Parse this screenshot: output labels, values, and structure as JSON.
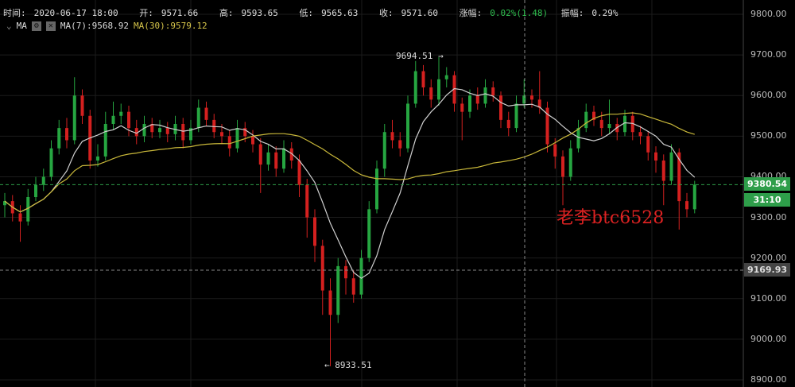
{
  "header": {
    "time_label": "时间:",
    "time": "2020-06-17 18:00",
    "open_label": "开:",
    "open": "9571.66",
    "high_label": "高:",
    "high": "9593.65",
    "low_label": "低:",
    "low": "9565.63",
    "close_label": "收:",
    "close": "9571.60",
    "change_label": "涨幅:",
    "change": "0.02%(1.48)",
    "amplitude_label": "振幅:",
    "amplitude": "0.29%"
  },
  "indicator": {
    "name": "MA",
    "ma7": "MA(7):9568.92",
    "ma30": "MA(30):9579.12",
    "icons": [
      "chevron-down-icon",
      "gear-icon",
      "close-icon"
    ]
  },
  "price_axis": [
    "9800.00",
    "9700.00",
    "9600.00",
    "9500.00",
    "9400.00",
    "9300.00",
    "9200.00",
    "9100.00",
    "9000.00",
    "8900.00"
  ],
  "current_price": "9380.54",
  "countdown": "31:10",
  "crosshair_price": "9169.93",
  "max_annotation": "9694.51 →",
  "min_annotation": "← 8933.51",
  "watermark": "老李btc6528",
  "colors": {
    "up": "#26a641",
    "down": "#d4201f",
    "ma7": "#d0d0d0",
    "ma30": "#c9b83a",
    "current": "#2e9e4a"
  },
  "chart_data": {
    "type": "candlestick",
    "ylim": [
      8900,
      9800
    ],
    "ma_periods": [
      7,
      30
    ],
    "candles": [
      [
        9330,
        9360,
        9300,
        9340
      ],
      [
        9340,
        9355,
        9290,
        9310
      ],
      [
        9310,
        9330,
        9240,
        9290
      ],
      [
        9290,
        9370,
        9280,
        9350
      ],
      [
        9350,
        9400,
        9340,
        9380
      ],
      [
        9380,
        9420,
        9365,
        9400
      ],
      [
        9400,
        9490,
        9390,
        9470
      ],
      [
        9470,
        9540,
        9455,
        9520
      ],
      [
        9520,
        9545,
        9470,
        9490
      ],
      [
        9490,
        9645,
        9480,
        9600
      ],
      [
        9600,
        9615,
        9530,
        9550
      ],
      [
        9550,
        9565,
        9420,
        9440
      ],
      [
        9440,
        9480,
        9425,
        9450
      ],
      [
        9450,
        9560,
        9440,
        9530
      ],
      [
        9530,
        9585,
        9515,
        9550
      ],
      [
        9550,
        9580,
        9530,
        9560
      ],
      [
        9560,
        9575,
        9500,
        9520
      ],
      [
        9520,
        9540,
        9480,
        9500
      ],
      [
        9500,
        9550,
        9485,
        9530
      ],
      [
        9530,
        9545,
        9495,
        9510
      ],
      [
        9510,
        9540,
        9495,
        9520
      ],
      [
        9520,
        9535,
        9485,
        9505
      ],
      [
        9505,
        9550,
        9490,
        9530
      ],
      [
        9530,
        9545,
        9470,
        9490
      ],
      [
        9490,
        9540,
        9480,
        9520
      ],
      [
        9520,
        9590,
        9510,
        9570
      ],
      [
        9570,
        9585,
        9525,
        9540
      ],
      [
        9540,
        9555,
        9495,
        9510
      ],
      [
        9510,
        9530,
        9480,
        9500
      ],
      [
        9500,
        9515,
        9450,
        9470
      ],
      [
        9470,
        9540,
        9460,
        9520
      ],
      [
        9520,
        9535,
        9485,
        9500
      ],
      [
        9500,
        9515,
        9460,
        9480
      ],
      [
        9480,
        9495,
        9360,
        9430
      ],
      [
        9430,
        9480,
        9415,
        9460
      ],
      [
        9460,
        9475,
        9400,
        9420
      ],
      [
        9420,
        9490,
        9410,
        9470
      ],
      [
        9470,
        9485,
        9420,
        9440
      ],
      [
        9440,
        9455,
        9350,
        9380
      ],
      [
        9380,
        9395,
        9250,
        9300
      ],
      [
        9300,
        9320,
        9190,
        9230
      ],
      [
        9230,
        9245,
        9060,
        9120
      ],
      [
        9120,
        9150,
        8933.51,
        9060
      ],
      [
        9060,
        9200,
        9040,
        9180
      ],
      [
        9180,
        9195,
        9110,
        9150
      ],
      [
        9150,
        9170,
        9090,
        9110
      ],
      [
        9110,
        9220,
        9100,
        9200
      ],
      [
        9200,
        9340,
        9190,
        9320
      ],
      [
        9320,
        9440,
        9310,
        9420
      ],
      [
        9420,
        9530,
        9400,
        9510
      ],
      [
        9510,
        9540,
        9470,
        9490
      ],
      [
        9490,
        9510,
        9450,
        9470
      ],
      [
        9470,
        9600,
        9460,
        9580
      ],
      [
        9580,
        9685,
        9570,
        9660
      ],
      [
        9660,
        9675,
        9600,
        9620
      ],
      [
        9620,
        9640,
        9570,
        9590
      ],
      [
        9590,
        9694.51,
        9575,
        9640
      ],
      [
        9640,
        9670,
        9620,
        9650
      ],
      [
        9650,
        9660,
        9560,
        9580
      ],
      [
        9580,
        9595,
        9490,
        9560
      ],
      [
        9560,
        9615,
        9545,
        9600
      ],
      [
        9600,
        9620,
        9565,
        9580
      ],
      [
        9580,
        9640,
        9570,
        9620
      ],
      [
        9620,
        9635,
        9585,
        9600
      ],
      [
        9600,
        9610,
        9520,
        9540
      ],
      [
        9540,
        9560,
        9500,
        9520
      ],
      [
        9520,
        9600,
        9510,
        9580
      ],
      [
        9580,
        9640,
        9570,
        9600
      ],
      [
        9600,
        9615,
        9570,
        9590
      ],
      [
        9590,
        9660,
        9555,
        9570
      ],
      [
        9570,
        9585,
        9460,
        9480
      ],
      [
        9480,
        9495,
        9420,
        9450
      ],
      [
        9450,
        9465,
        9330,
        9400
      ],
      [
        9400,
        9490,
        9390,
        9470
      ],
      [
        9470,
        9540,
        9460,
        9520
      ],
      [
        9520,
        9580,
        9510,
        9560
      ],
      [
        9560,
        9575,
        9525,
        9540
      ],
      [
        9540,
        9560,
        9500,
        9520
      ],
      [
        9520,
        9590,
        9505,
        9530
      ],
      [
        9530,
        9545,
        9490,
        9510
      ],
      [
        9510,
        9565,
        9500,
        9550
      ],
      [
        9550,
        9560,
        9490,
        9510
      ],
      [
        9510,
        9525,
        9480,
        9500
      ],
      [
        9500,
        9510,
        9440,
        9460
      ],
      [
        9460,
        9475,
        9410,
        9440
      ],
      [
        9440,
        9455,
        9330,
        9390
      ],
      [
        9390,
        9480,
        9380,
        9460
      ],
      [
        9460,
        9470,
        9270,
        9340
      ],
      [
        9340,
        9360,
        9300,
        9320
      ],
      [
        9320,
        9390,
        9310,
        9380.54
      ]
    ]
  }
}
